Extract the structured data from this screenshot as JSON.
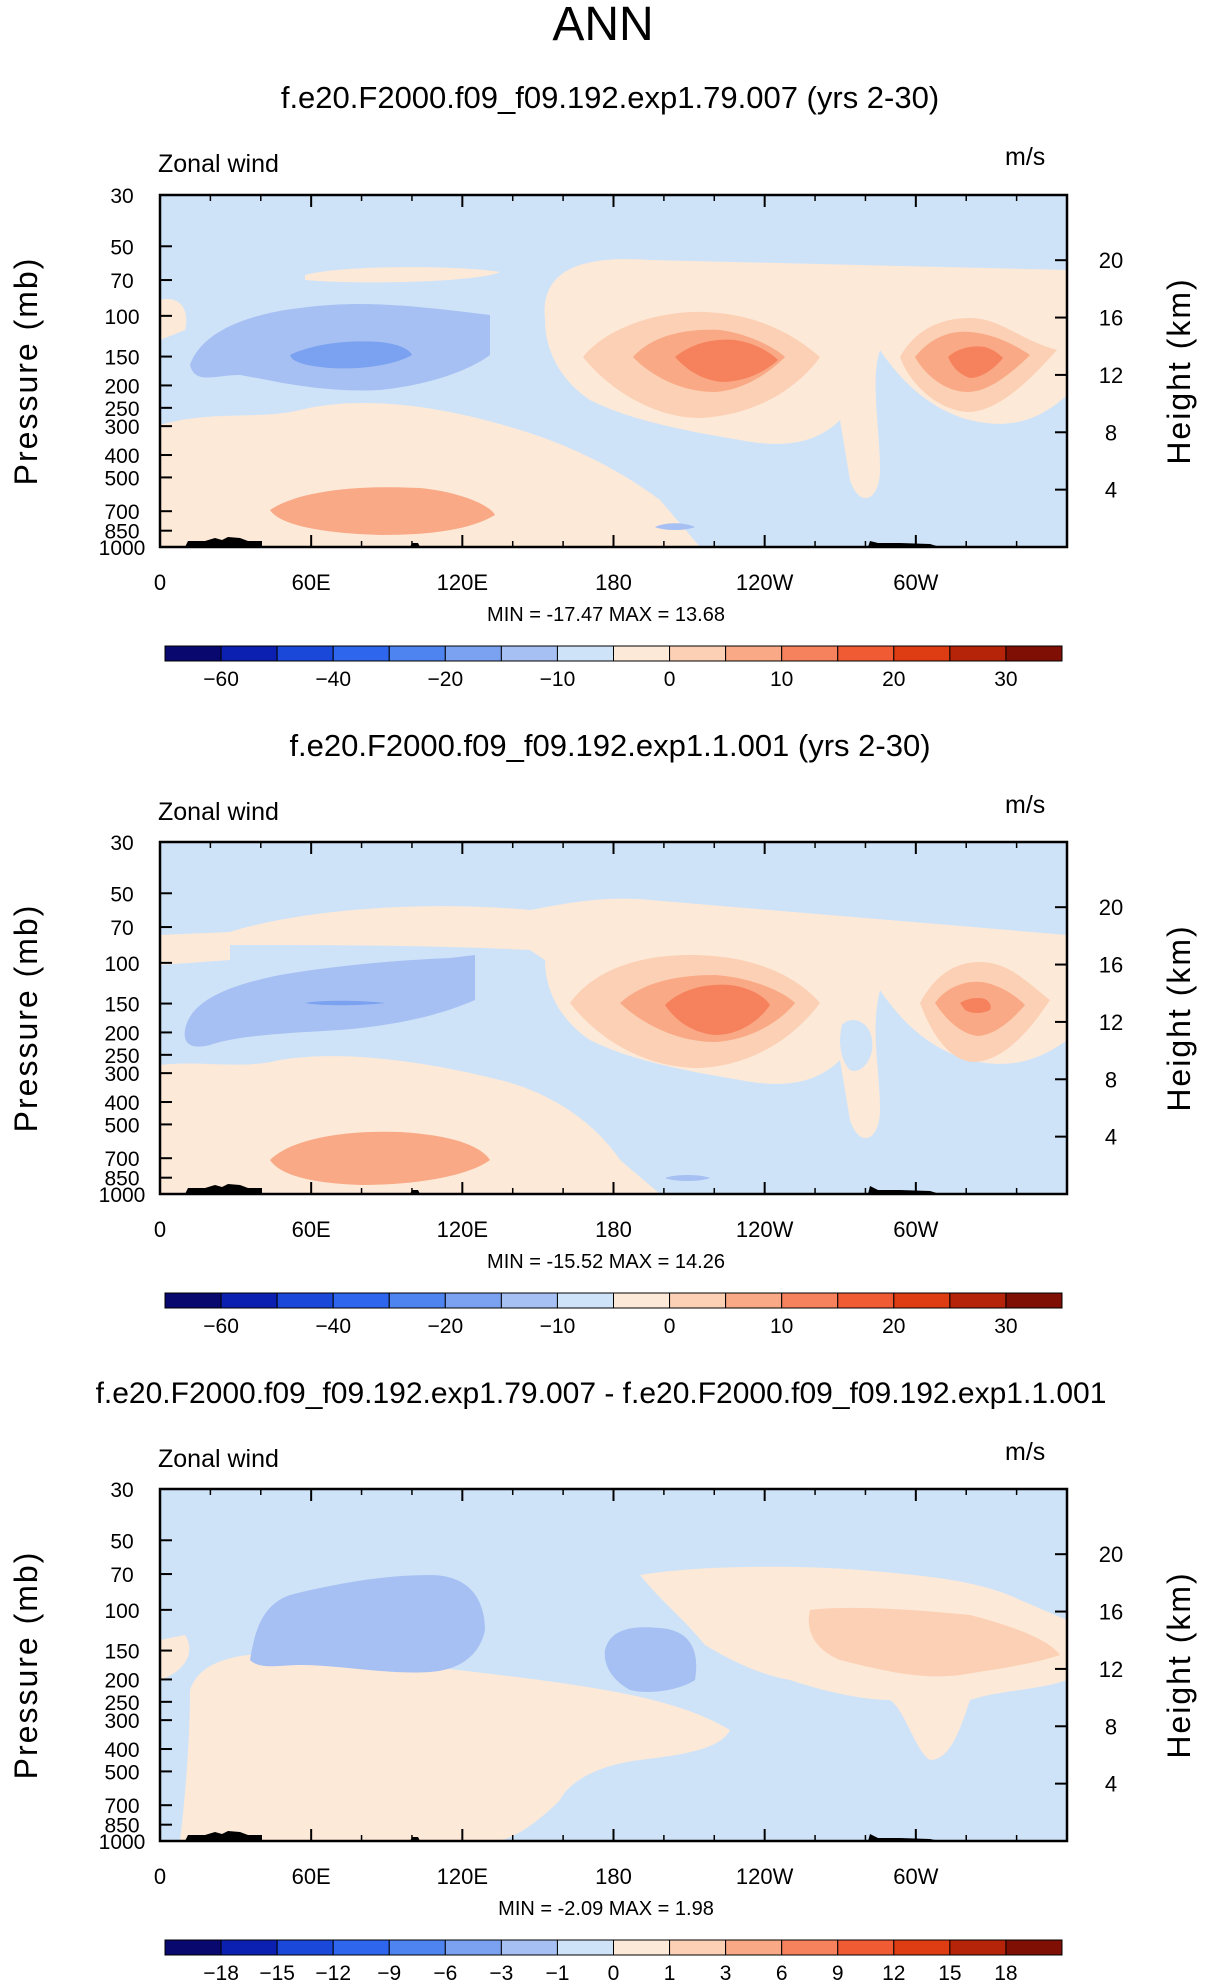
{
  "page_title": "ANN",
  "panels": [
    {
      "title": "f.e20.F2000.f09_f09.192.exp1.79.007 (yrs 2-30)",
      "label_left": "Zonal wind",
      "label_right": "m/s",
      "stats": "MIN = -17.47   MAX =  13.68"
    },
    {
      "title": "f.e20.F2000.f09_f09.192.exp1.1.001 (yrs 2-30)",
      "label_left": "Zonal wind",
      "label_right": "m/s",
      "stats": "MIN = -15.52   MAX =  14.26"
    },
    {
      "title": "f.e20.F2000.f09_f09.192.exp1.79.007 - f.e20.F2000.f09_f09.192.exp1.1.001",
      "label_left": "Zonal wind",
      "label_right": "m/s",
      "stats": "MIN =  -2.09   MAX =   1.98"
    }
  ],
  "chart_data": [
    {
      "type": "heatmap",
      "title": "f.e20.F2000.f09_f09.192.exp1.79.007 (yrs 2-30)",
      "variable": "Zonal wind",
      "units": "m/s",
      "xlabel": "",
      "ylabel": "Pressure (mb)",
      "ylabel_right": "Height (km)",
      "x_ticks": [
        "0",
        "60E",
        "120E",
        "180",
        "120W",
        "60W"
      ],
      "y_ticks": [
        "30",
        "50",
        "70",
        "100",
        "150",
        "200",
        "250",
        "300",
        "400",
        "500",
        "700",
        "850",
        "1000"
      ],
      "y_ticks_right": [
        "20",
        "16",
        "12",
        "8",
        "4"
      ],
      "min": -17.47,
      "max": 13.68,
      "colorbar_labels": [
        "-60",
        "-40",
        "-20",
        "-10",
        "0",
        "10",
        "20",
        "30"
      ],
      "colorbar_colors": [
        "#08086e",
        "#0b1fb0",
        "#1a48d8",
        "#2e66ee",
        "#4d84f0",
        "#7ba2f0",
        "#a7c0f3",
        "#cfe3f8",
        "#fde9d8",
        "#fcd0b4",
        "#f9a985",
        "#f6825d",
        "#f05b34",
        "#de3c12",
        "#b52308",
        "#7f0f04"
      ]
    },
    {
      "type": "heatmap",
      "title": "f.e20.F2000.f09_f09.192.exp1.1.001 (yrs 2-30)",
      "variable": "Zonal wind",
      "units": "m/s",
      "xlabel": "",
      "ylabel": "Pressure (mb)",
      "ylabel_right": "Height (km)",
      "x_ticks": [
        "0",
        "60E",
        "120E",
        "180",
        "120W",
        "60W"
      ],
      "y_ticks": [
        "30",
        "50",
        "70",
        "100",
        "150",
        "200",
        "250",
        "300",
        "400",
        "500",
        "700",
        "850",
        "1000"
      ],
      "y_ticks_right": [
        "20",
        "16",
        "12",
        "8",
        "4"
      ],
      "min": -15.52,
      "max": 14.26,
      "colorbar_labels": [
        "-60",
        "-40",
        "-20",
        "-10",
        "0",
        "10",
        "20",
        "30"
      ],
      "colorbar_colors": [
        "#08086e",
        "#0b1fb0",
        "#1a48d8",
        "#2e66ee",
        "#4d84f0",
        "#7ba2f0",
        "#a7c0f3",
        "#cfe3f8",
        "#fde9d8",
        "#fcd0b4",
        "#f9a985",
        "#f6825d",
        "#f05b34",
        "#de3c12",
        "#b52308",
        "#7f0f04"
      ]
    },
    {
      "type": "heatmap",
      "title": "f.e20.F2000.f09_f09.192.exp1.79.007 - f.e20.F2000.f09_f09.192.exp1.1.001",
      "variable": "Zonal wind",
      "units": "m/s",
      "xlabel": "",
      "ylabel": "Pressure (mb)",
      "ylabel_right": "Height (km)",
      "x_ticks": [
        "0",
        "60E",
        "120E",
        "180",
        "120W",
        "60W"
      ],
      "y_ticks": [
        "30",
        "50",
        "70",
        "100",
        "150",
        "200",
        "250",
        "300",
        "400",
        "500",
        "700",
        "850",
        "1000"
      ],
      "y_ticks_right": [
        "20",
        "16",
        "12",
        "8",
        "4"
      ],
      "min": -2.09,
      "max": 1.98,
      "colorbar_labels": [
        "-18",
        "-15",
        "-12",
        "-9",
        "-6",
        "-3",
        "-1",
        "0",
        "1",
        "3",
        "6",
        "9",
        "12",
        "15",
        "18"
      ],
      "colorbar_colors": [
        "#08086e",
        "#0b1fb0",
        "#1a48d8",
        "#2e66ee",
        "#4d84f0",
        "#7ba2f0",
        "#a7c0f3",
        "#cfe3f8",
        "#fde9d8",
        "#fcd0b4",
        "#f9a985",
        "#f6825d",
        "#f05b34",
        "#de3c12",
        "#b52308",
        "#7f0f04"
      ]
    }
  ]
}
